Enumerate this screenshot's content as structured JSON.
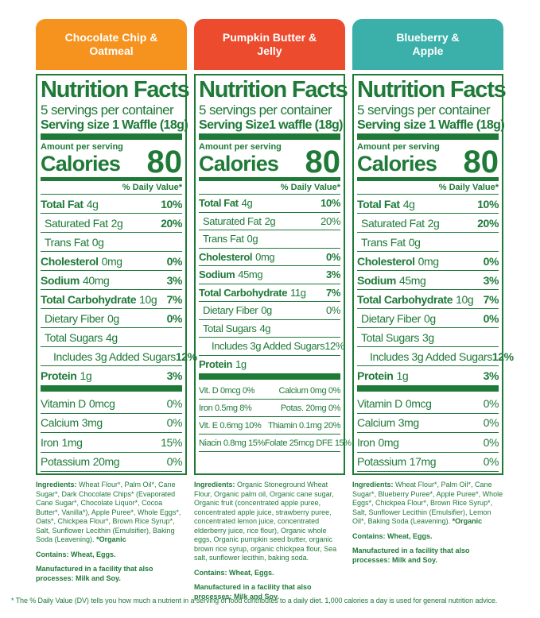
{
  "panels": [
    {
      "header": "Chocolate Chip & Oatmeal",
      "title": "Nutrition Facts",
      "servings": "5 servings per container",
      "serving_size": "Serving size 1 Waffle (18g)",
      "amount_per_serving": "Amount per serving",
      "calories_label": "Calories",
      "calories_value": 80,
      "dv_header": "% Daily Value*",
      "rows": [
        {
          "name": "Total Fat",
          "amount": "4g",
          "dv": "10%"
        },
        {
          "name": "Saturated Fat",
          "amount": "2g",
          "dv": "20%"
        },
        {
          "name": "Trans Fat",
          "amount": "0g"
        },
        {
          "name": "Cholesterol",
          "amount": "0mg",
          "dv": "0%"
        },
        {
          "name": "Sodium",
          "amount": "40mg",
          "dv": "3%"
        },
        {
          "name": "Total Carbohydrate",
          "amount": "10g",
          "dv": "7%"
        },
        {
          "name": "Dietary Fiber",
          "amount": "0g",
          "dv": "0%"
        },
        {
          "name": "Total Sugars",
          "amount": "4g"
        },
        {
          "name": "Includes 3g Added Sugars",
          "dv": "12%"
        },
        {
          "name": "Protein",
          "amount": "1g",
          "dv": "3%"
        }
      ],
      "vitamins": [
        {
          "name": "Vitamin D",
          "amount": "0mcg",
          "dv": "0%"
        },
        {
          "name": "Calcium",
          "amount": "3mg",
          "dv": "0%"
        },
        {
          "name": "Iron",
          "amount": "1mg",
          "dv": "15%"
        },
        {
          "name": "Potassium",
          "amount": "20mg",
          "dv": "0%"
        }
      ],
      "ingredients_label": "Ingredients:",
      "ingredients": "Wheat Flour*, Palm Oil*, Cane Sugar*, Dark Chocolate Chips* (Evaporated Cane Sugar*, Chocolate Liquor*, Cocoa Butter*, Vanilla*), Apple Puree*, Whole Eggs*, Oats*, Chickpea Flour*, Brown Rice Syrup*, Salt, Sunflower Lecithin (Emulsifier), Baking Soda (Leavening).",
      "ingredients_note": "*Organic",
      "contains": "Contains: Wheat, Eggs.",
      "facility": "Manufactured in a facility that also processes: Milk and Soy."
    },
    {
      "header": "Pumpkin Butter & Jelly",
      "title": "Nutrition Facts",
      "servings": "5 servings per container",
      "serving_size_label": "Serving Size",
      "serving_size_value": "1 waffle (18g)",
      "amount_per_serving": "Amount per serving",
      "calories_label": "Calories",
      "calories_value": 80,
      "dv_header": "% Daily Value*",
      "rows": [
        {
          "name": "Total Fat",
          "amount": "4g",
          "dv": "10%"
        },
        {
          "name": "Saturated Fat",
          "amount": "2g",
          "dv": "20%"
        },
        {
          "name": "Trans Fat",
          "amount": "0g"
        },
        {
          "name": "Cholesterol",
          "amount": "0mg",
          "dv": "0%"
        },
        {
          "name": "Sodium",
          "amount": "45mg",
          "dv": "3%"
        },
        {
          "name": "Total Carbohydrate",
          "amount": "11g",
          "dv": "7%"
        },
        {
          "name": "Dietary Fiber",
          "amount": "0g",
          "dv": "0%"
        },
        {
          "name": "Total Sugars",
          "amount": "4g"
        },
        {
          "name": "Includes 3g Added Sugars",
          "dv": "12%"
        },
        {
          "name": "Protein",
          "amount": "1g"
        }
      ],
      "vitamin_grid": [
        [
          "Vit. D 0mcg 0%",
          "Calcium 0mg 0%"
        ],
        [
          "Iron 0.5mg 8%",
          "Potas. 20mg 0%"
        ],
        [
          "Vit. E 0.6mg 10%",
          "Thiamin 0.1mg 20%"
        ],
        [
          "Niacin 0.8mg 15%",
          "Folate 25mcg DFE 15%"
        ]
      ],
      "ingredients_label": "Ingredients:",
      "ingredients": "Organic Stoneground Wheat Flour, Organic palm oil, Organic cane sugar, Organic fruit (concentrated apple puree, concentrated apple juice, strawberry puree, concentrated lemon juice, concentrated elderberry juice, rice flour), Organic whole eggs, Organic pumpkin seed butter, organic brown rice syrup, organic chickpea flour, Sea salt, sunflower lecithin, baking soda.",
      "contains": "Contains: Wheat, Eggs.",
      "facility": "Manufactured in a facility that also processes: Milk and Soy."
    },
    {
      "header": "Blueberry & Apple",
      "title": "Nutrition Facts",
      "servings": "5 servings per container",
      "serving_size": "Serving size 1 Waffle (18g)",
      "amount_per_serving": "Amount per serving",
      "calories_label": "Calories",
      "calories_value": 80,
      "dv_header": "% Daily Value*",
      "rows": [
        {
          "name": "Total Fat",
          "amount": "4g",
          "dv": "10%"
        },
        {
          "name": "Saturated Fat",
          "amount": "2g",
          "dv": "20%"
        },
        {
          "name": "Trans Fat",
          "amount": "0g"
        },
        {
          "name": "Cholesterol",
          "amount": "0mg",
          "dv": "0%"
        },
        {
          "name": "Sodium",
          "amount": "45mg",
          "dv": "3%"
        },
        {
          "name": "Total Carbohydrate",
          "amount": "10g",
          "dv": "7%"
        },
        {
          "name": "Dietary Fiber",
          "amount": "0g",
          "dv": "0%"
        },
        {
          "name": "Total Sugars",
          "amount": "3g"
        },
        {
          "name": "Includes 3g Added Sugars",
          "dv": "12%"
        },
        {
          "name": "Protein",
          "amount": "1g",
          "dv": "3%"
        }
      ],
      "vitamins": [
        {
          "name": "Vitamin D",
          "amount": "0mcg",
          "dv": "0%"
        },
        {
          "name": "Calcium",
          "amount": "3mg",
          "dv": "0%"
        },
        {
          "name": "Iron",
          "amount": "0mg",
          "dv": "0%"
        },
        {
          "name": "Potassium",
          "amount": "17mg",
          "dv": "0%"
        }
      ],
      "ingredients_label": "Ingredients:",
      "ingredients": "Wheat Flour*, Palm Oil*, Cane Sugar*, Blueberry Puree*, Apple Puree*, Whole Eggs*, Chickpea Flour*, Brown Rice Syrup*, Salt, Sunflower Lecithin (Emulsifier), Lemon Oil*, Baking Soda (Leavening).",
      "ingredients_note": "*Organic",
      "contains": "Contains: Wheat, Eggs.",
      "facility": "Manufactured in a facility that also processes: Milk and Soy."
    }
  ],
  "footnote": "* The % Daily Value (DV) tells you how much a nutrient in a serving of food contributes to a daily diet. 1,000 calories a day is used for general nutrition advice."
}
